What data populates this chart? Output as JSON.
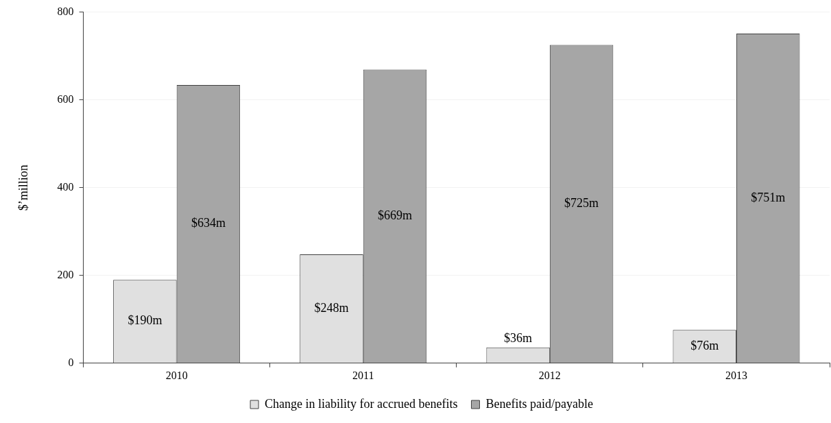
{
  "chart_data": {
    "type": "bar",
    "ylabel": "$’million",
    "categories": [
      "2010",
      "2011",
      "2012",
      "2013"
    ],
    "series": [
      {
        "name": "Change in liability for accrued benefits",
        "color": "#e0e0e0",
        "values": [
          190,
          248,
          36,
          76
        ],
        "value_labels": [
          "$190m",
          "$248m",
          "$36m",
          "$76m"
        ]
      },
      {
        "name": "Benefits paid/payable",
        "color": "#a6a6a6",
        "values": [
          634,
          669,
          725,
          751
        ],
        "value_labels": [
          "$634m",
          "$669m",
          "$725m",
          "$751m"
        ]
      }
    ],
    "ylim": [
      0,
      800
    ],
    "yticks": [
      0,
      200,
      400,
      600,
      800
    ],
    "grid": "y",
    "legend": "bottom"
  }
}
